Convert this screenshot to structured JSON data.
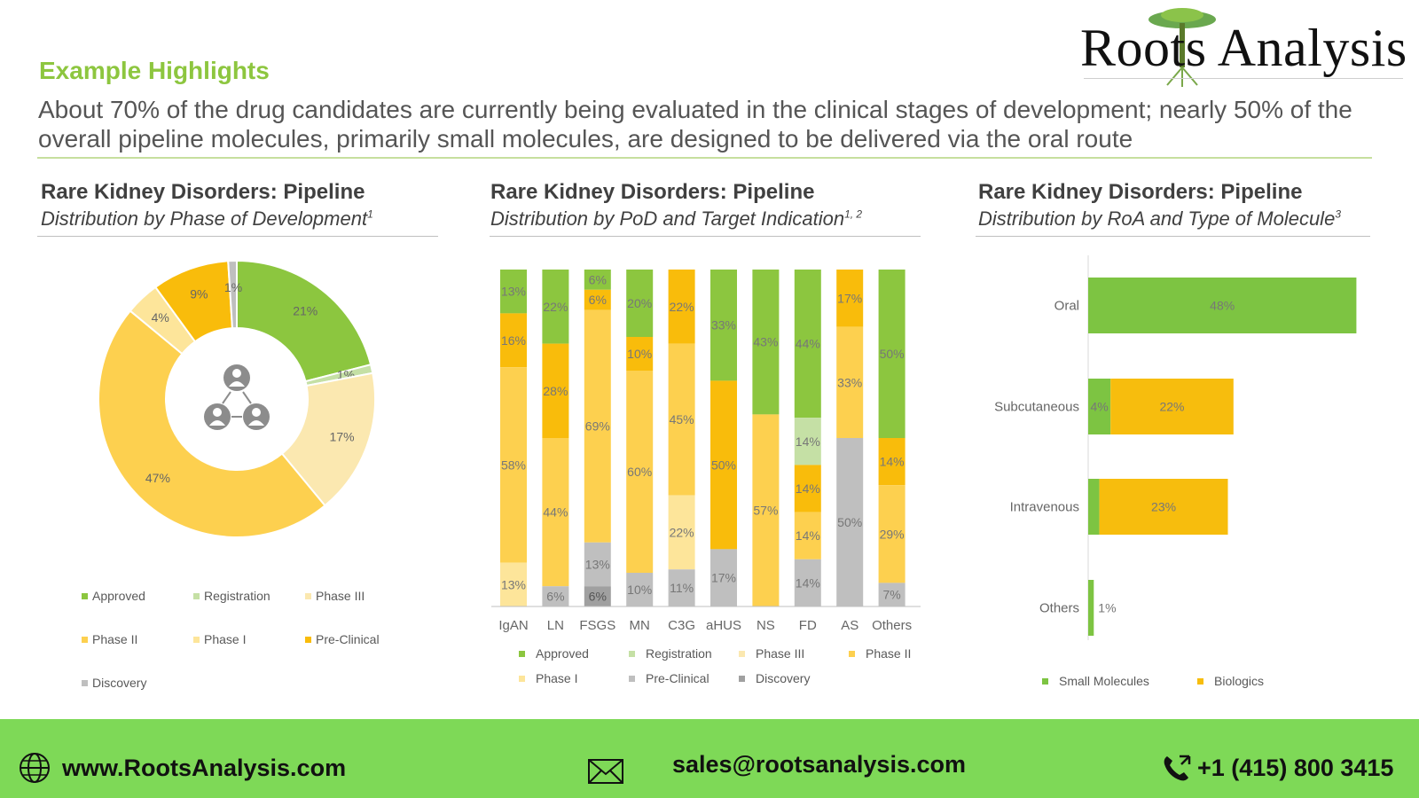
{
  "logo": {
    "text": "Roots Analysis"
  },
  "header": {
    "section_title": "Example Highlights",
    "subtitle": "About 70% of the drug candidates are currently being evaluated in the clinical stages of development; nearly 50% of the overall pipeline molecules, primarily small molecules, are designed to be delivered via the oral route"
  },
  "panels": [
    {
      "title": "Rare Kidney Disorders: Pipeline",
      "subtitle": "Distribution by Phase of Development",
      "sup": "1"
    },
    {
      "title": "Rare Kidney Disorders: Pipeline",
      "subtitle": "Distribution by PoD and Target Indication",
      "sup": "1, 2"
    },
    {
      "title": "Rare Kidney Disorders: Pipeline",
      "subtitle": "Distribution by RoA and Type of Molecule",
      "sup": "3"
    }
  ],
  "colors": {
    "Approved": "#8cc63f",
    "Registration": "#c5e0a5",
    "Phase III": "#fbe8b0",
    "Phase II": "#fdd04f",
    "Phase I": "#fde59a",
    "Pre-Clinical": "#f9bc0b",
    "Discovery": "#bfbfbf",
    "Discovery Dark": "#a0a0a0",
    "Small Molecules": "#7dc442",
    "Biologics": "#f7bd0d"
  },
  "chart_data": [
    {
      "type": "pie",
      "slices": [
        {
          "label": "Approved",
          "value": 21,
          "display": "21%"
        },
        {
          "label": "Registration",
          "value": 1,
          "display": "1%"
        },
        {
          "label": "Phase III",
          "value": 17,
          "display": "17%"
        },
        {
          "label": "Phase II",
          "value": 47,
          "display": "47%"
        },
        {
          "label": "Phase I",
          "value": 4,
          "display": "4%"
        },
        {
          "label": "Pre-Clinical",
          "value": 9,
          "display": "9%"
        },
        {
          "label": "Discovery",
          "value": 1,
          "display": "1%"
        }
      ],
      "legend": [
        "Approved",
        "Registration",
        "Phase III",
        "Phase II",
        "Phase I",
        "Pre-Clinical",
        "Discovery"
      ]
    },
    {
      "type": "bar",
      "stacked": true,
      "categories": [
        "IgAN",
        "LN",
        "FSGS",
        "MN",
        "C3G",
        "aHUS",
        "NS",
        "FD",
        "AS",
        "Others"
      ],
      "columns": [
        [
          {
            "s": "Approved",
            "v": 13
          },
          {
            "s": "Pre-Clinical",
            "v": 16
          },
          {
            "s": "Phase II",
            "v": 58
          },
          {
            "s": "Phase I",
            "v": 13
          }
        ],
        [
          {
            "s": "Approved",
            "v": 22
          },
          {
            "s": "Pre-Clinical",
            "v": 28
          },
          {
            "s": "Phase II",
            "v": 44
          },
          {
            "s": "Discovery",
            "v": 6
          }
        ],
        [
          {
            "s": "Approved",
            "v": 6
          },
          {
            "s": "Pre-Clinical",
            "v": 6
          },
          {
            "s": "Phase II",
            "v": 69
          },
          {
            "s": "Discovery",
            "v": 13
          },
          {
            "s": "Discovery Dark",
            "v": 6
          }
        ],
        [
          {
            "s": "Approved",
            "v": 20
          },
          {
            "s": "Pre-Clinical",
            "v": 10
          },
          {
            "s": "Phase II",
            "v": 60
          },
          {
            "s": "Discovery",
            "v": 10
          }
        ],
        [
          {
            "s": "Pre-Clinical",
            "v": 22
          },
          {
            "s": "Phase II",
            "v": 45
          },
          {
            "s": "Phase I",
            "v": 22
          },
          {
            "s": "Discovery",
            "v": 11
          }
        ],
        [
          {
            "s": "Approved",
            "v": 33
          },
          {
            "s": "Pre-Clinical",
            "v": 50
          },
          {
            "s": "Discovery",
            "v": 17
          }
        ],
        [
          {
            "s": "Approved",
            "v": 43
          },
          {
            "s": "Phase II",
            "v": 57
          }
        ],
        [
          {
            "s": "Approved",
            "v": 44
          },
          {
            "s": "Registration",
            "v": 14
          },
          {
            "s": "Pre-Clinical",
            "v": 14
          },
          {
            "s": "Phase II",
            "v": 14
          },
          {
            "s": "Discovery",
            "v": 14
          }
        ],
        [
          {
            "s": "Pre-Clinical",
            "v": 17
          },
          {
            "s": "Phase II",
            "v": 33
          },
          {
            "s": "Discovery",
            "v": 50
          }
        ],
        [
          {
            "s": "Approved",
            "v": 50
          },
          {
            "s": "Pre-Clinical",
            "v": 14
          },
          {
            "s": "Phase II",
            "v": 29
          },
          {
            "s": "Discovery",
            "v": 7
          }
        ]
      ],
      "legend": [
        "Approved",
        "Registration",
        "Phase III",
        "Phase II",
        "Phase I",
        "Pre-Clinical",
        "Discovery"
      ]
    },
    {
      "type": "bar",
      "orientation": "horizontal",
      "stacked": true,
      "categories": [
        "Oral",
        "Subcutaneous",
        "Intravenous",
        "Others"
      ],
      "series": [
        {
          "name": "Small Molecules",
          "values": [
            48,
            4,
            2,
            1
          ]
        },
        {
          "name": "Biologics",
          "values": [
            0,
            22,
            23,
            0
          ]
        }
      ],
      "xlim": [
        0,
        50
      ]
    }
  ],
  "footer": {
    "website": "www.RootsAnalysis.com",
    "email": "sales@rootsanalysis.com",
    "phone": "+1 (415) 800 3415"
  }
}
